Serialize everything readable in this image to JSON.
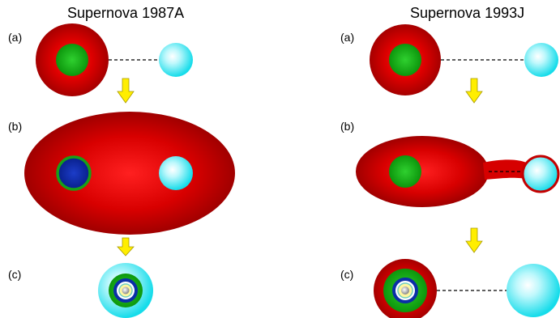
{
  "panels": [
    {
      "title": "Supernova 1987A",
      "stage_labels": [
        "(a)",
        "(b)",
        "(c)"
      ]
    },
    {
      "title": "Supernova 1993J",
      "stage_labels": [
        "(a)",
        "(b)",
        "(c)"
      ]
    }
  ],
  "colors": {
    "envelope_red": "#d60000",
    "core_green": "#11aa11",
    "core_blue": "#0b2fa8",
    "companion_cyan": "#22e6f2",
    "arrow_yellow": "#ffee00",
    "connector": "#000000"
  }
}
